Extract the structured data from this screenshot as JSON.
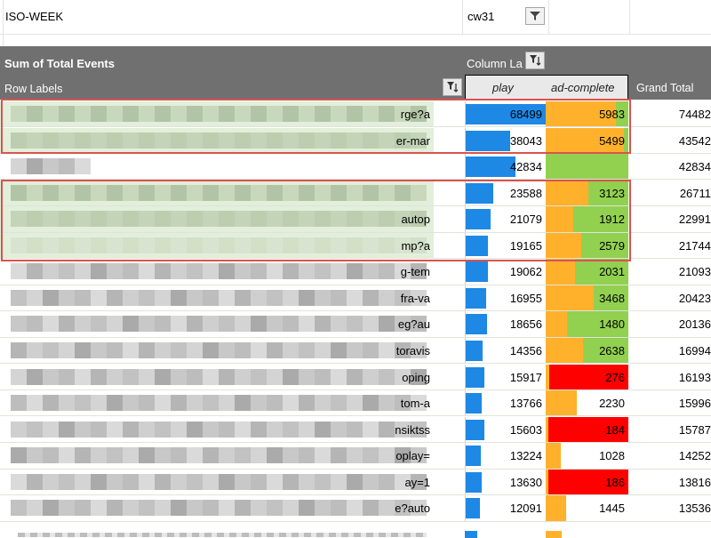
{
  "filter": {
    "label": "ISO-WEEK",
    "value": "cw31"
  },
  "pivot": {
    "title": "Sum of Total Events",
    "column_labels": "Column La",
    "row_labels": "Row Labels",
    "col_play": "play",
    "col_ad": "ad-complete",
    "col_grand": "Grand Total"
  },
  "colors": {
    "play_bar": "#1e88e5",
    "ad_high": "#92d050",
    "ad_mid": "#ffb12c",
    "ad_low": "#ff0000",
    "label_bg": "#e2efda",
    "outline": "#d9534f"
  },
  "rows": [
    {
      "tail": "rge?a",
      "play": "68499",
      "play_pct": 1.0,
      "ad": "5983",
      "ad_orange_pct": 0.85,
      "ad_bg": "green",
      "grand": "74482",
      "shaded": true
    },
    {
      "tail": "er-mar",
      "play": "38043",
      "play_pct": 0.55,
      "ad": "5499",
      "ad_orange_pct": 0.95,
      "ad_bg": "green",
      "grand": "43542",
      "shaded": true
    },
    {
      "tail": "",
      "play": "42834",
      "play_pct": 0.62,
      "ad": "",
      "ad_orange_pct": 0.0,
      "ad_bg": "green",
      "grand": "42834",
      "shaded": false
    },
    {
      "tail": "",
      "play": "23588",
      "play_pct": 0.34,
      "ad": "3123",
      "ad_orange_pct": 0.52,
      "ad_bg": "green",
      "grand": "26711",
      "shaded": true
    },
    {
      "tail": "autop",
      "play": "21079",
      "play_pct": 0.31,
      "ad": "1912",
      "ad_orange_pct": 0.33,
      "ad_bg": "green",
      "grand": "22991",
      "shaded": true
    },
    {
      "tail": "mp?a",
      "play": "19165",
      "play_pct": 0.28,
      "ad": "2579",
      "ad_orange_pct": 0.43,
      "ad_bg": "green",
      "grand": "21744",
      "shaded": true
    },
    {
      "tail": "g-tem",
      "play": "19062",
      "play_pct": 0.28,
      "ad": "2031",
      "ad_orange_pct": 0.35,
      "ad_bg": "green",
      "grand": "21093",
      "shaded": false
    },
    {
      "tail": "fra-va",
      "play": "16955",
      "play_pct": 0.25,
      "ad": "3468",
      "ad_orange_pct": 0.58,
      "ad_bg": "green",
      "grand": "20423",
      "shaded": false
    },
    {
      "tail": "eg?au",
      "play": "18656",
      "play_pct": 0.27,
      "ad": "1480",
      "ad_orange_pct": 0.26,
      "ad_bg": "green",
      "grand": "20136",
      "shaded": false
    },
    {
      "tail": "toravis",
      "play": "14356",
      "play_pct": 0.21,
      "ad": "2638",
      "ad_orange_pct": 0.45,
      "ad_bg": "green",
      "grand": "16994",
      "shaded": false
    },
    {
      "tail": "oping",
      "play": "15917",
      "play_pct": 0.23,
      "ad": "276",
      "ad_orange_pct": 0.04,
      "ad_bg": "red",
      "grand": "16193",
      "shaded": false
    },
    {
      "tail": "tom-a",
      "play": "13766",
      "play_pct": 0.2,
      "ad": "2230",
      "ad_orange_pct": 0.38,
      "ad_bg": "white",
      "grand": "15996",
      "shaded": false
    },
    {
      "tail": "nsiktss",
      "play": "15603",
      "play_pct": 0.23,
      "ad": "184",
      "ad_orange_pct": 0.03,
      "ad_bg": "red",
      "grand": "15787",
      "shaded": false
    },
    {
      "tail": "oplay=",
      "play": "13224",
      "play_pct": 0.19,
      "ad": "1028",
      "ad_orange_pct": 0.18,
      "ad_bg": "white",
      "grand": "14252",
      "shaded": false
    },
    {
      "tail": "ay=1",
      "play": "13630",
      "play_pct": 0.2,
      "ad": "186",
      "ad_orange_pct": 0.03,
      "ad_bg": "red",
      "grand": "13816",
      "shaded": false
    },
    {
      "tail": "e?auto",
      "play": "12091",
      "play_pct": 0.18,
      "ad": "1445",
      "ad_orange_pct": 0.25,
      "ad_bg": "white",
      "grand": "13536",
      "shaded": false
    }
  ]
}
